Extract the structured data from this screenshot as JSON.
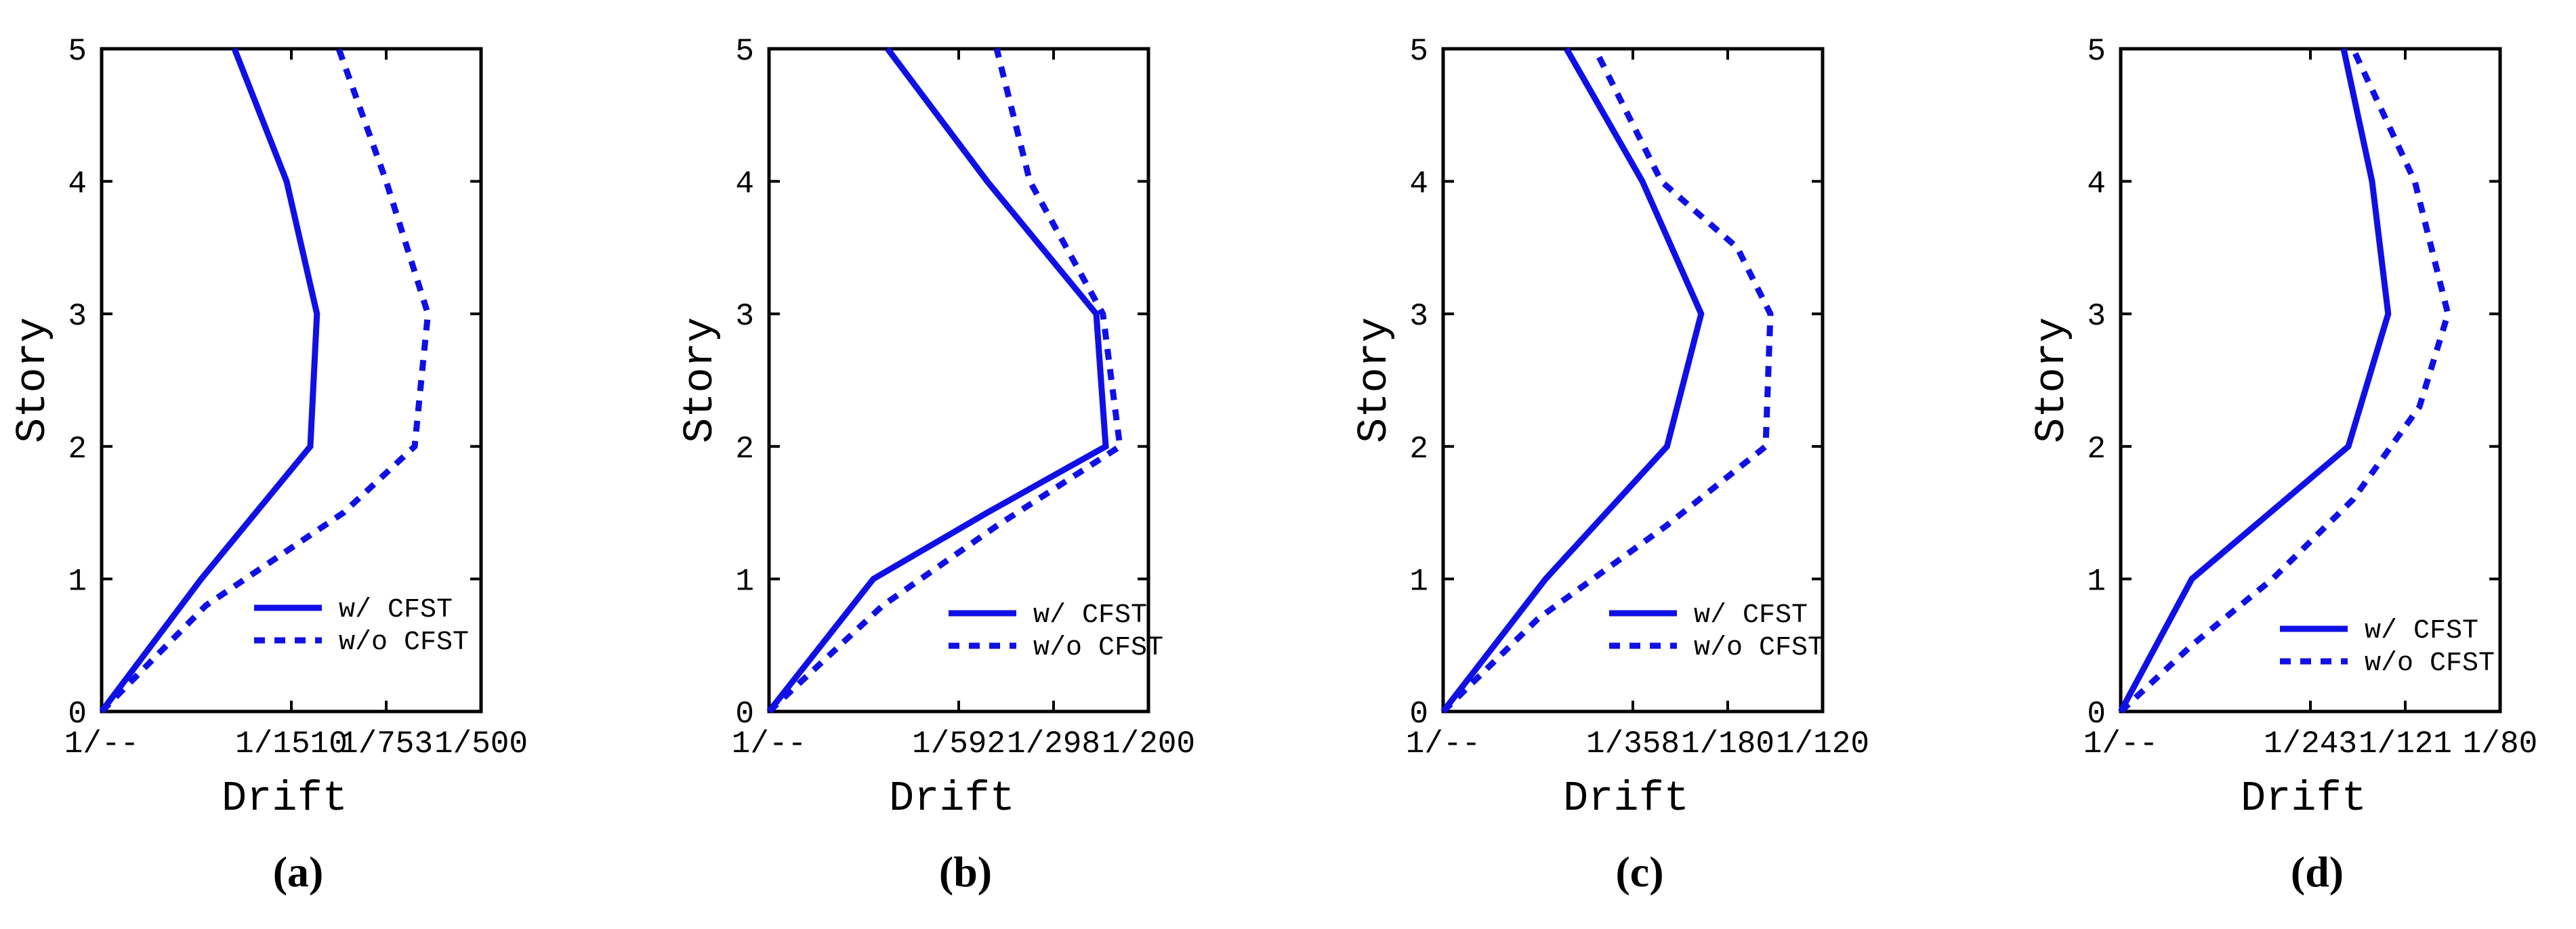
{
  "colors": {
    "series": "#1010e6",
    "axes": "#000000",
    "background": "#ffffff"
  },
  "chart_data": [
    {
      "panel": "(a)",
      "type": "line",
      "xlabel": "Drift",
      "ylabel": "Story",
      "xlim": [
        0,
        4
      ],
      "ylim": [
        0,
        5
      ],
      "xticks": [
        {
          "value": 0,
          "label": "1/--"
        },
        {
          "value": 2,
          "label": "1/1510"
        },
        {
          "value": 3,
          "label": "1/753"
        },
        {
          "value": 4,
          "label": "1/500"
        }
      ],
      "yticks": [
        0,
        1,
        2,
        3,
        4,
        5
      ],
      "series": [
        {
          "name": "w/ CFST",
          "style": "solid",
          "x": [
            0,
            1.05,
            2.2,
            2.27,
            1.95,
            1.4
          ],
          "y": [
            0,
            1,
            2,
            3,
            4,
            5
          ]
        },
        {
          "name": "w/o CFST",
          "style": "dashed",
          "x": [
            0,
            1.1,
            2.55,
            3.3,
            3.44,
            3.0,
            2.5
          ],
          "y": [
            0,
            0.8,
            1.5,
            2,
            3,
            4,
            5
          ]
        }
      ]
    },
    {
      "panel": "(b)",
      "type": "line",
      "xlabel": "Drift",
      "ylabel": "Story",
      "xlim": [
        0,
        4
      ],
      "ylim": [
        0,
        5
      ],
      "xticks": [
        {
          "value": 0,
          "label": "1/--"
        },
        {
          "value": 2,
          "label": "1/592"
        },
        {
          "value": 3,
          "label": "1/298"
        },
        {
          "value": 4,
          "label": "1/200"
        }
      ],
      "yticks": [
        0,
        1,
        2,
        3,
        4,
        5
      ],
      "series": [
        {
          "name": "w/ CFST",
          "style": "solid",
          "x": [
            0,
            1.1,
            2.3,
            3.55,
            3.45,
            2.3,
            1.25
          ],
          "y": [
            0,
            1,
            1.5,
            2,
            3,
            4,
            5
          ]
        },
        {
          "name": "w/o CFST",
          "style": "dashed",
          "x": [
            0,
            1.2,
            2.4,
            3.7,
            3.52,
            2.75,
            2.4
          ],
          "y": [
            0,
            0.8,
            1.4,
            2,
            3,
            4,
            5
          ]
        }
      ]
    },
    {
      "panel": "(c)",
      "type": "line",
      "xlabel": "Drift",
      "ylabel": "Story",
      "xlim": [
        0,
        4
      ],
      "ylim": [
        0,
        5
      ],
      "xticks": [
        {
          "value": 0,
          "label": "1/--"
        },
        {
          "value": 2,
          "label": "1/358"
        },
        {
          "value": 3,
          "label": "1/180"
        },
        {
          "value": 4,
          "label": "1/120"
        }
      ],
      "yticks": [
        0,
        1,
        2,
        3,
        4,
        5
      ],
      "series": [
        {
          "name": "w/ CFST",
          "style": "solid",
          "x": [
            0,
            1.08,
            2.36,
            2.72,
            2.1,
            1.3
          ],
          "y": [
            0,
            1,
            2,
            3,
            4,
            5
          ]
        },
        {
          "name": "w/o CFST",
          "style": "dashed",
          "x": [
            0,
            1.0,
            2.35,
            3.4,
            3.45,
            3.1,
            2.3,
            1.6
          ],
          "y": [
            0,
            0.7,
            1.4,
            2,
            3,
            3.5,
            4,
            5
          ]
        }
      ]
    },
    {
      "panel": "(d)",
      "type": "line",
      "xlabel": "Drift",
      "ylabel": "Story",
      "xlim": [
        0,
        4
      ],
      "ylim": [
        0,
        5
      ],
      "xticks": [
        {
          "value": 0,
          "label": "1/--"
        },
        {
          "value": 2,
          "label": "1/243"
        },
        {
          "value": 3,
          "label": "1/121"
        },
        {
          "value": 4,
          "label": "1/80"
        }
      ],
      "yticks": [
        0,
        1,
        2,
        3,
        4,
        5
      ],
      "series": [
        {
          "name": "w/ CFST",
          "style": "solid",
          "x": [
            0,
            0.75,
            2.4,
            2.82,
            2.65,
            2.35
          ],
          "y": [
            0,
            1,
            2,
            3,
            4,
            5
          ]
        },
        {
          "name": "w/o CFST",
          "style": "dashed",
          "x": [
            0,
            0.75,
            1.6,
            2.45,
            3.15,
            3.45,
            3.1,
            2.45
          ],
          "y": [
            0,
            0.5,
            1,
            1.6,
            2.3,
            3,
            4,
            5
          ]
        }
      ]
    }
  ]
}
